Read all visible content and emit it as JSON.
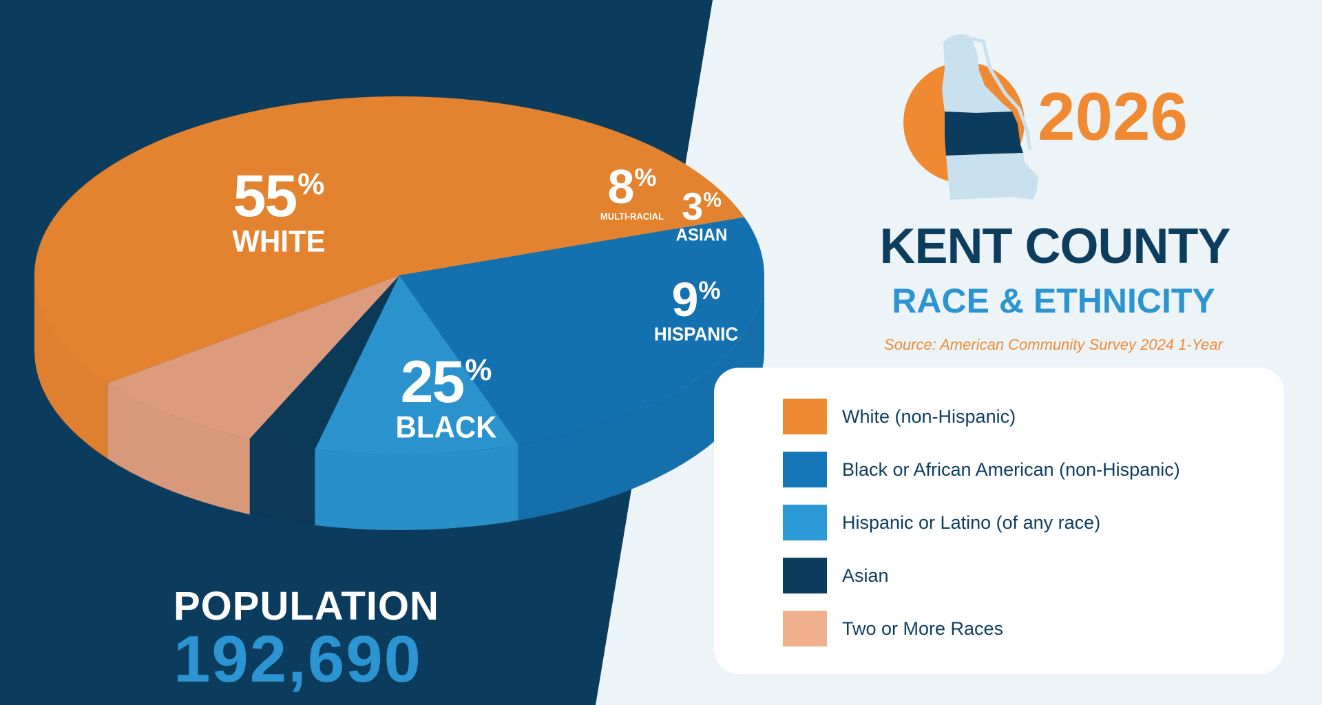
{
  "chart_data": {
    "type": "pie",
    "categories": [
      "White (non-Hispanic)",
      "Black or African American (non-Hispanic)",
      "Hispanic or Latino (of any race)",
      "Asian",
      "Two or More Races"
    ],
    "values": [
      55,
      25,
      9,
      3,
      8
    ],
    "unit": "%",
    "slice_labels": [
      {
        "pct": "55",
        "name": "WHITE"
      },
      {
        "pct": "25",
        "name": "BLACK"
      },
      {
        "pct": "9",
        "name": "HISPANIC"
      },
      {
        "pct": "3",
        "name": "ASIAN"
      },
      {
        "pct": "8",
        "name": "MULTI-RACIAL"
      }
    ],
    "colors": [
      "#ef8a32",
      "#1577b8",
      "#2c9ad7",
      "#0c3d5e",
      "#e8a383"
    ],
    "side_colors": [
      "#ef8a32",
      "#1577b8",
      "#2c9ad7",
      "#0c3d5e",
      "#e8a383"
    ],
    "legend_position": "right"
  },
  "header": {
    "year": "2026",
    "county": "KENT COUNTY",
    "subtitle": "RACE & ETHNICITY",
    "source": "Source: American Community Survey 2024 1-Year"
  },
  "population": {
    "label": "POPULATION",
    "value": "192,690"
  },
  "legend": [
    {
      "label": "White (non-Hispanic)",
      "color": "#ef8a32"
    },
    {
      "label": "Black or African American (non-Hispanic)",
      "color": "#1577b8"
    },
    {
      "label": "Hispanic or Latino (of any race)",
      "color": "#2c9ad7"
    },
    {
      "label": "Asian",
      "color": "#0c3d5e"
    },
    {
      "label": "Two or More Races",
      "color": "#f0b08e"
    }
  ],
  "theme": {
    "navy": "#0c3d5e",
    "light_bg": "#edf4f8",
    "map_fill": "#c9e1ee"
  },
  "icons": [
    "delaware-map-icon"
  ]
}
